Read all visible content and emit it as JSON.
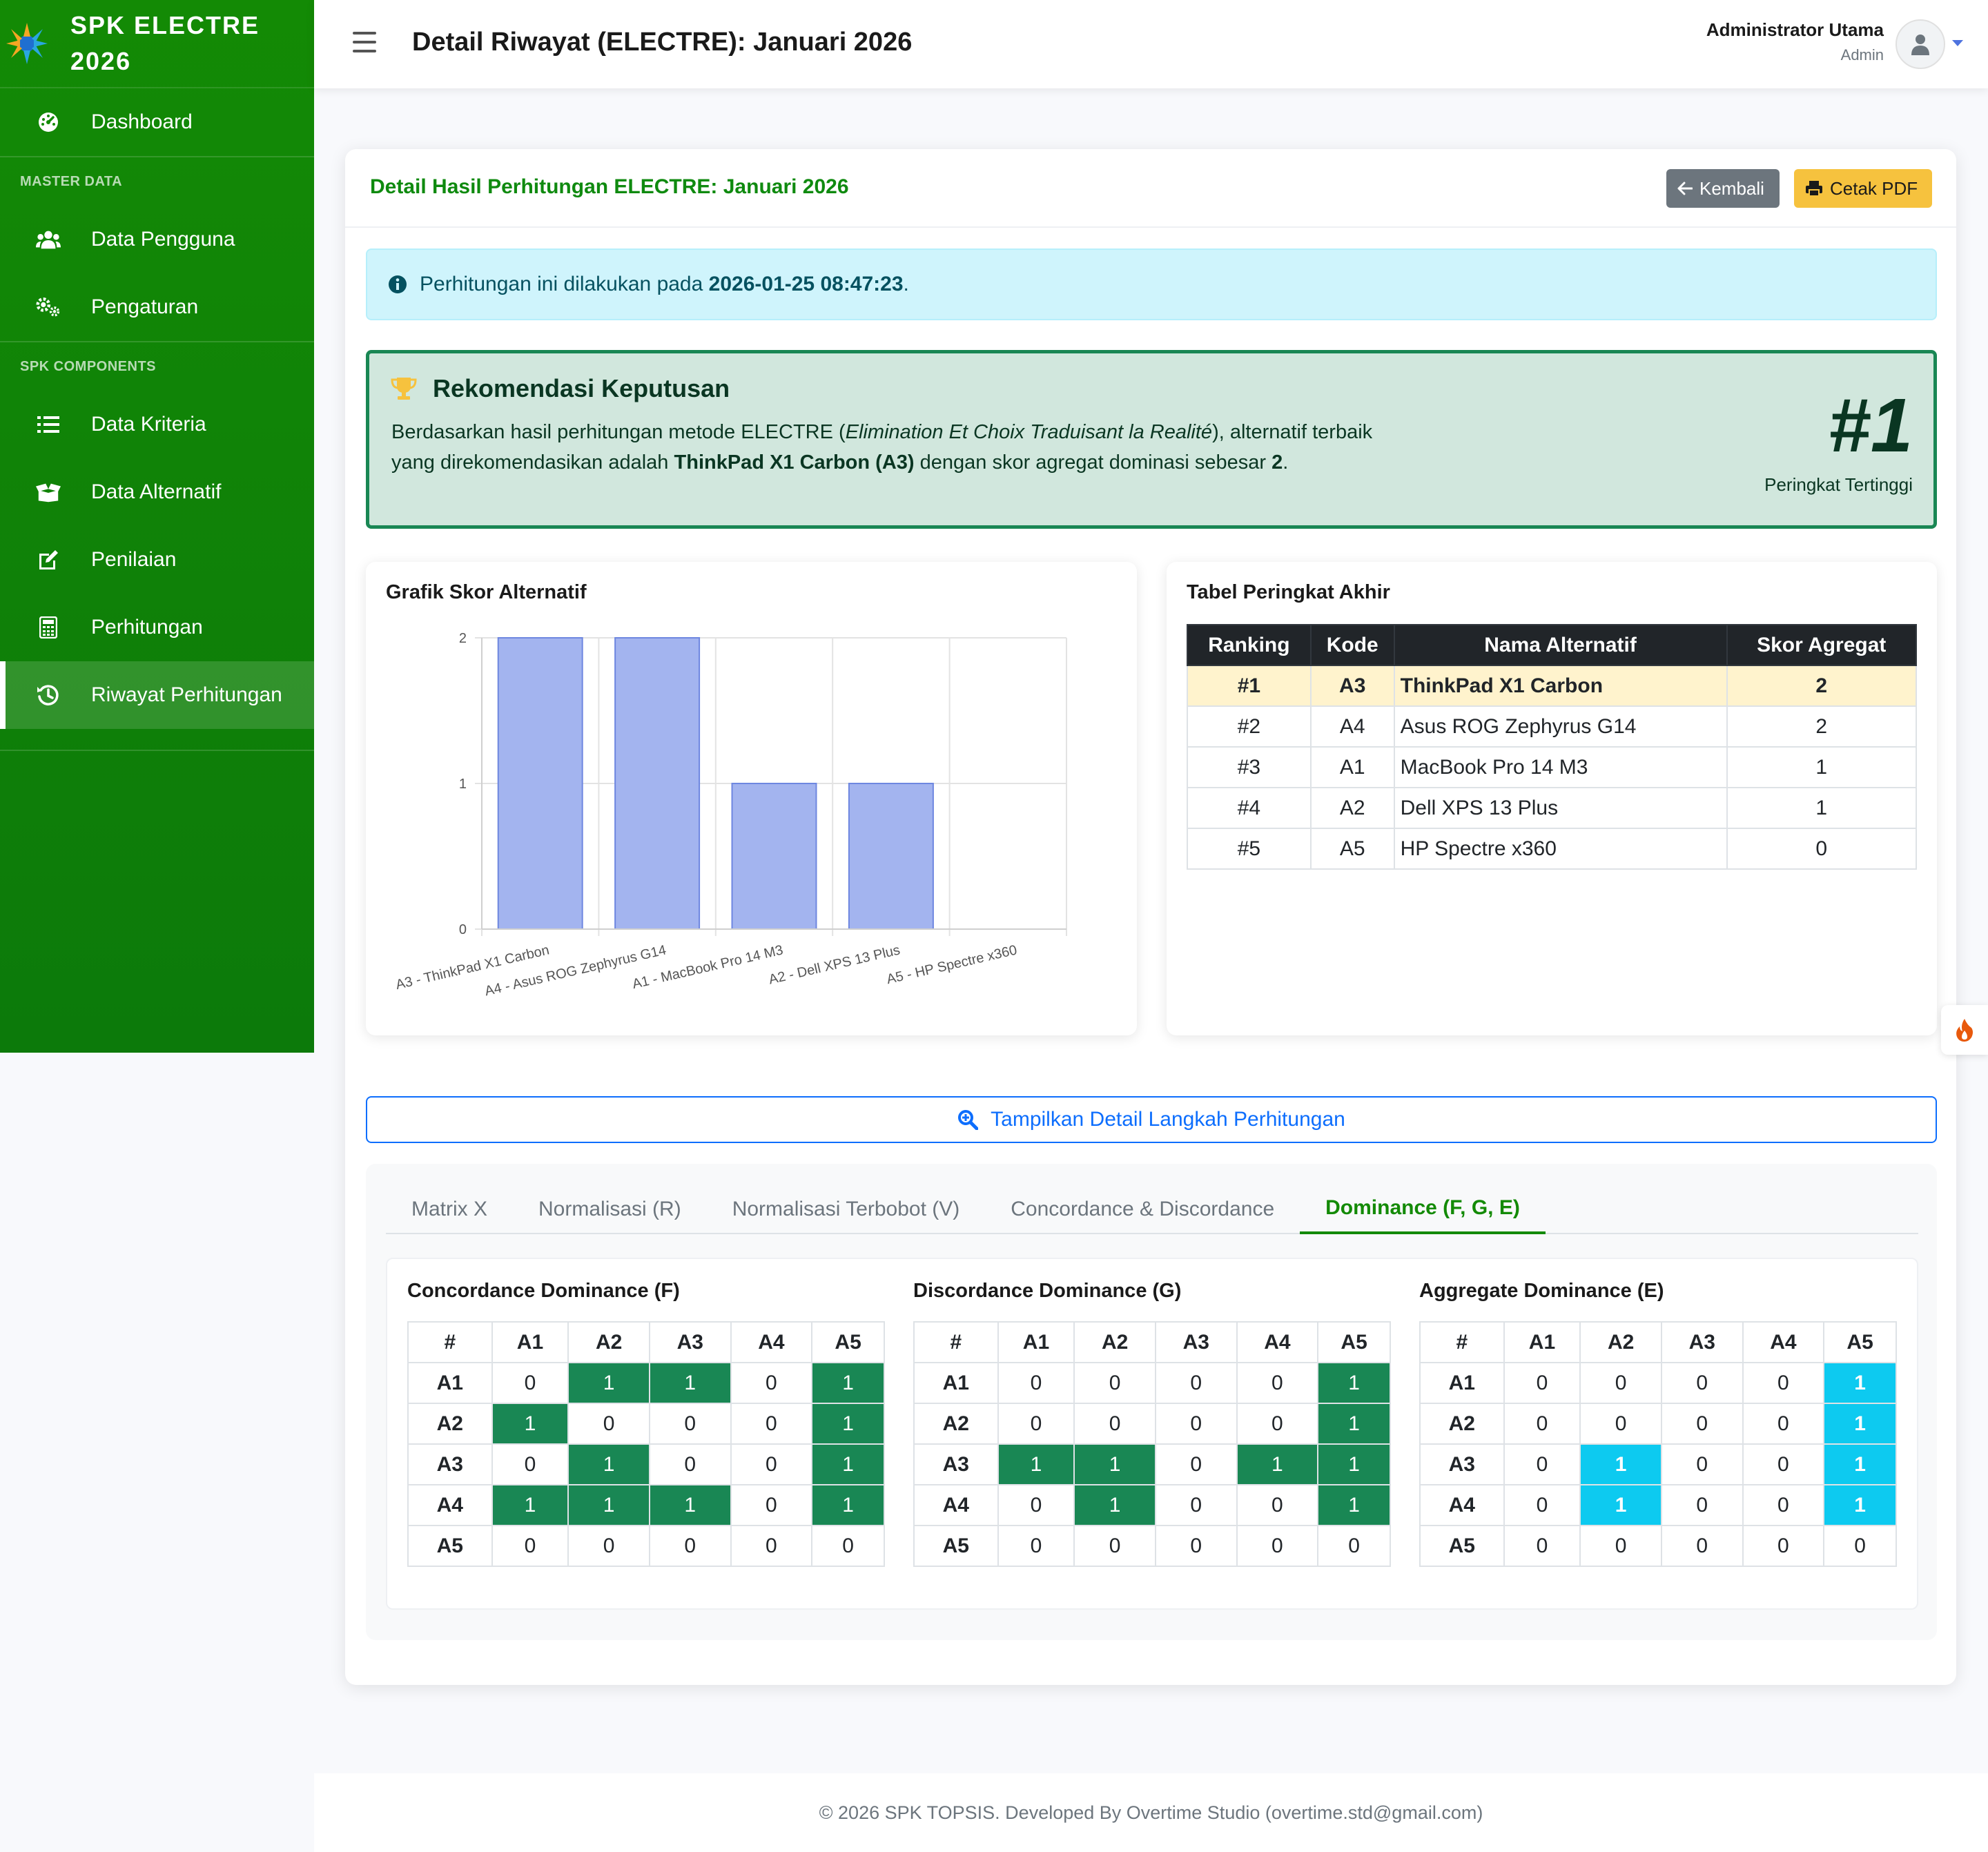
{
  "sidebar": {
    "brand_line1": "SPK ELECTRE",
    "brand_line2": "2026",
    "dashboard": "Dashboard",
    "heading_master": "MASTER DATA",
    "data_pengguna": "Data Pengguna",
    "pengaturan": "Pengaturan",
    "heading_spk": "SPK COMPONENTS",
    "data_kriteria": "Data Kriteria",
    "data_alternatif": "Data Alternatif",
    "penilaian": "Penilaian",
    "perhitungan": "Perhitungan",
    "riwayat": "Riwayat Perhitungan"
  },
  "topbar": {
    "title": "Detail Riwayat (ELECTRE): Januari 2026",
    "user_name": "Administrator Utama",
    "user_role": "Admin"
  },
  "card": {
    "title": "Detail Hasil Perhitungan ELECTRE: Januari 2026",
    "back_label": "Kembali",
    "pdf_label": "Cetak PDF"
  },
  "info": {
    "prefix": "Perhitungan ini dilakukan pada",
    "datetime": "2026-01-25 08:47:23",
    "suffix": "."
  },
  "recommendation": {
    "title": "Rekomendasi Keputusan",
    "text_a": "Berdasarkan hasil perhitungan metode ELECTRE (",
    "method_full": "Elimination Et Choix Traduisant la Realité",
    "text_b": "), alternatif terbaik yang direkomendasikan adalah",
    "best": "ThinkPad X1 Carbon (A3)",
    "text_c": "dengan skor agregat dominasi sebesar",
    "score": "2",
    "text_d": ".",
    "rank": "#1",
    "rank_label": "Peringkat Tertinggi"
  },
  "chart_panel": {
    "title": "Grafik Skor Alternatif"
  },
  "chart_data": {
    "type": "bar",
    "title": "",
    "categories": [
      "A3 - ThinkPad X1 Carbon",
      "A4 - Asus ROG Zephyrus G14",
      "A1 - MacBook Pro 14 M3",
      "A2 - Dell XPS 13 Plus",
      "A5 - HP Spectre x360"
    ],
    "values": [
      2,
      2,
      1,
      1,
      0
    ],
    "ylim": [
      0,
      2
    ],
    "yticks": [
      "0",
      "1",
      "2"
    ],
    "xlabel": "",
    "ylabel": "",
    "grid": true,
    "color": "#a3b4ef",
    "border_color": "#6e87e0"
  },
  "ranking_table": {
    "title": "Tabel Peringkat Akhir",
    "headers": [
      "Ranking",
      "Kode",
      "Nama Alternatif",
      "Skor Agregat"
    ],
    "rows": [
      [
        "#1",
        "A3",
        "ThinkPad X1 Carbon",
        "2"
      ],
      [
        "#2",
        "A4",
        "Asus ROG Zephyrus G14",
        "2"
      ],
      [
        "#3",
        "A1",
        "MacBook Pro 14 M3",
        "1"
      ],
      [
        "#4",
        "A2",
        "Dell XPS 13 Plus",
        "1"
      ],
      [
        "#5",
        "A5",
        "HP Spectre x360",
        "0"
      ]
    ]
  },
  "toggle_label": "Tampilkan Detail Langkah Perhitungan",
  "tabs": [
    "Matrix X",
    "Normalisasi (R)",
    "Normalisasi Terbobot (V)",
    "Concordance & Discordance",
    "Dominance (F, G, E)"
  ],
  "active_tab": "Dominance (F, G, E)",
  "dominance": {
    "headers": [
      "#",
      "A1",
      "A2",
      "A3",
      "A4",
      "A5"
    ],
    "row_labels": [
      "A1",
      "A2",
      "A3",
      "A4",
      "A5"
    ],
    "F": {
      "title": "Concordance Dominance (F)",
      "matrix": [
        [
          0,
          1,
          1,
          0,
          1
        ],
        [
          1,
          0,
          0,
          0,
          1
        ],
        [
          0,
          1,
          0,
          0,
          1
        ],
        [
          1,
          1,
          1,
          0,
          1
        ],
        [
          0,
          0,
          0,
          0,
          0
        ]
      ]
    },
    "G": {
      "title": "Discordance Dominance (G)",
      "matrix": [
        [
          0,
          0,
          0,
          0,
          1
        ],
        [
          0,
          0,
          0,
          0,
          1
        ],
        [
          1,
          1,
          0,
          1,
          1
        ],
        [
          0,
          1,
          0,
          0,
          1
        ],
        [
          0,
          0,
          0,
          0,
          0
        ]
      ]
    },
    "E": {
      "title": "Aggregate Dominance (E)",
      "matrix": [
        [
          0,
          0,
          0,
          0,
          1
        ],
        [
          0,
          0,
          0,
          0,
          1
        ],
        [
          0,
          1,
          0,
          0,
          1
        ],
        [
          0,
          1,
          0,
          0,
          1
        ],
        [
          0,
          0,
          0,
          0,
          0
        ]
      ]
    }
  },
  "footer": "© 2026 SPK TOPSIS. Developed By Overtime Studio (overtime.std@gmail.com)"
}
